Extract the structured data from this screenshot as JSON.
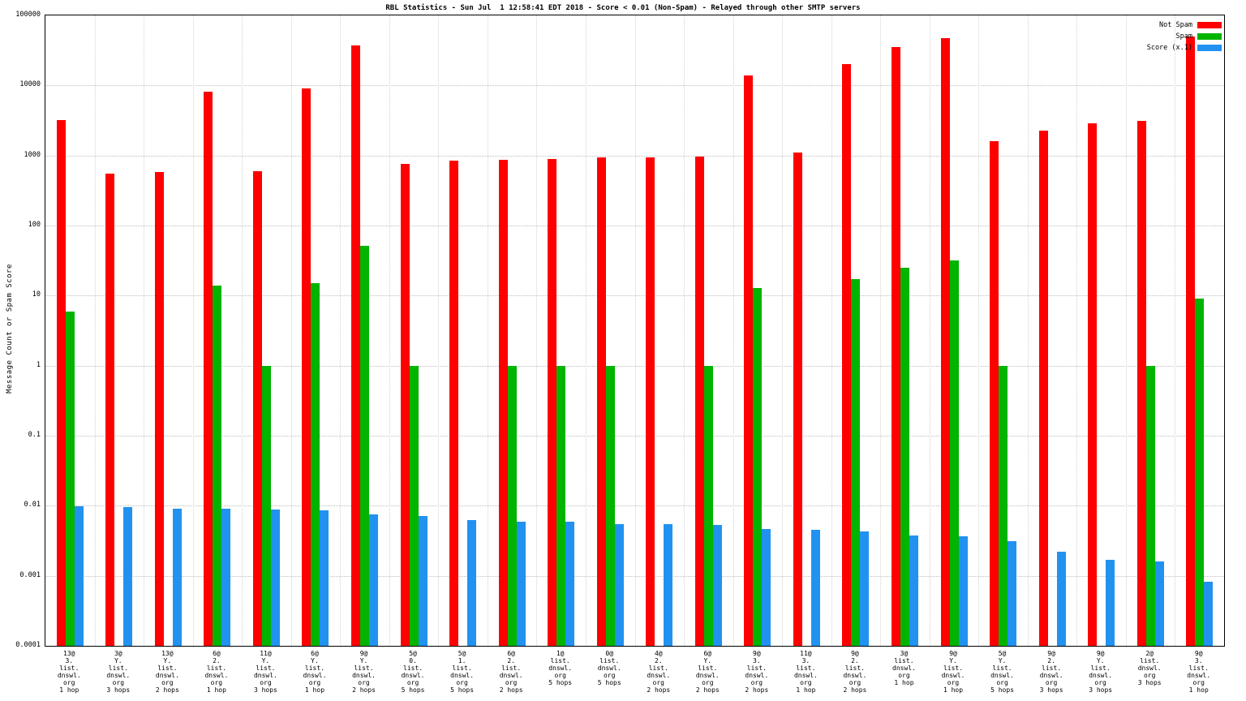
{
  "title": "RBL Statistics - Sun Jul  1 12:58:41 EDT 2018 - Score < 0.01 (Non-Spam) - Relayed through other SMTP servers",
  "ylabel": "Message Count or Spam Score",
  "legend": [
    {
      "label": "Not Spam",
      "color": "#ff0000"
    },
    {
      "label": "Spam",
      "color": "#00b400"
    },
    {
      "label": "Score (x.1)",
      "color": "#2292f0"
    }
  ],
  "chart_data": {
    "type": "bar",
    "scale": "log",
    "ylim": [
      0.0001,
      100000
    ],
    "ytics": [
      "100000",
      "10000",
      "1000",
      "100",
      "10",
      "1",
      "0.1",
      "0.01",
      "0.001",
      "0.0001"
    ],
    "grid": true,
    "legend_position": "top-right",
    "series_names": [
      "Not Spam",
      "Spam",
      "Score (x.1)"
    ],
    "groups": [
      {
        "label_lines": [
          "13@",
          "3.",
          "list.",
          "dnswl.",
          "org",
          "1 hop"
        ],
        "values": [
          3200,
          6,
          0.0097
        ]
      },
      {
        "label_lines": [
          "3@",
          "Y.",
          "list.",
          "dnswl.",
          "org",
          "3 hops"
        ],
        "values": [
          550,
          null,
          0.0095
        ]
      },
      {
        "label_lines": [
          "13@",
          "Y.",
          "list.",
          "dnswl.",
          "org",
          "2 hops"
        ],
        "values": [
          580,
          null,
          0.0091
        ]
      },
      {
        "label_lines": [
          "6@",
          "2.",
          "list.",
          "dnswl.",
          "org",
          "1 hop"
        ],
        "values": [
          8200,
          14,
          0.009
        ]
      },
      {
        "label_lines": [
          "11@",
          "Y.",
          "list.",
          "dnswl.",
          "org",
          "3 hops"
        ],
        "values": [
          600,
          1,
          0.0088
        ]
      },
      {
        "label_lines": [
          "6@",
          "Y.",
          "list.",
          "dnswl.",
          "org",
          "1 hop"
        ],
        "values": [
          9000,
          15,
          0.0086
        ]
      },
      {
        "label_lines": [
          "9@",
          "Y.",
          "list.",
          "dnswl.",
          "org",
          "2 hops"
        ],
        "values": [
          37000,
          52,
          0.0076
        ]
      },
      {
        "label_lines": [
          "5@",
          "0.",
          "list.",
          "dnswl.",
          "org",
          "5 hops"
        ],
        "values": [
          750,
          1,
          0.0071
        ]
      },
      {
        "label_lines": [
          "5@",
          "1.",
          "list.",
          "dnswl.",
          "org",
          "5 hops"
        ],
        "values": [
          850,
          null,
          0.0063
        ]
      },
      {
        "label_lines": [
          "6@",
          "2.",
          "list.",
          "dnswl.",
          "org",
          "2 hops"
        ],
        "values": [
          860,
          1,
          0.006
        ]
      },
      {
        "label_lines": [
          "1@",
          "list.",
          "dnswl.",
          "org",
          "5 hops"
        ],
        "values": [
          880,
          1,
          0.0059
        ]
      },
      {
        "label_lines": [
          "0@",
          "list.",
          "dnswl.",
          "org",
          "5 hops"
        ],
        "values": [
          930,
          1,
          0.0054
        ]
      },
      {
        "label_lines": [
          "4@",
          "2.",
          "list.",
          "dnswl.",
          "org",
          "2 hops"
        ],
        "values": [
          950,
          null,
          0.0054
        ]
      },
      {
        "label_lines": [
          "6@",
          "Y.",
          "list.",
          "dnswl.",
          "org",
          "2 hops"
        ],
        "values": [
          960,
          1,
          0.0053
        ]
      },
      {
        "label_lines": [
          "9@",
          "3.",
          "list.",
          "dnswl.",
          "org",
          "2 hops"
        ],
        "values": [
          14000,
          13,
          0.0047
        ]
      },
      {
        "label_lines": [
          "11@",
          "3.",
          "list.",
          "dnswl.",
          "org",
          "1 hop"
        ],
        "values": [
          1100,
          null,
          0.0045
        ]
      },
      {
        "label_lines": [
          "9@",
          "2.",
          "list.",
          "dnswl.",
          "org",
          "2 hops"
        ],
        "values": [
          20000,
          17,
          0.0043
        ]
      },
      {
        "label_lines": [
          "3@",
          "list.",
          "dnswl.",
          "org",
          "1 hop"
        ],
        "values": [
          35000,
          25,
          0.0038
        ]
      },
      {
        "label_lines": [
          "9@",
          "Y.",
          "list.",
          "dnswl.",
          "org",
          "1 hop"
        ],
        "values": [
          47000,
          32,
          0.0037
        ]
      },
      {
        "label_lines": [
          "5@",
          "Y.",
          "list.",
          "dnswl.",
          "org",
          "5 hops"
        ],
        "values": [
          1600,
          1,
          0.0031
        ]
      },
      {
        "label_lines": [
          "9@",
          "2.",
          "list.",
          "dnswl.",
          "org",
          "3 hops"
        ],
        "values": [
          2250,
          null,
          0.0022
        ]
      },
      {
        "label_lines": [
          "9@",
          "Y.",
          "list.",
          "dnswl.",
          "org",
          "3 hops"
        ],
        "values": [
          2900,
          null,
          0.0017
        ]
      },
      {
        "label_lines": [
          "2@",
          "list.",
          "dnswl.",
          "org",
          "3 hops"
        ],
        "values": [
          3100,
          1,
          0.0016
        ]
      },
      {
        "label_lines": [
          "9@",
          "3.",
          "list.",
          "dnswl.",
          "org",
          "1 hop"
        ],
        "values": [
          50000,
          9,
          0.00082
        ]
      }
    ]
  }
}
